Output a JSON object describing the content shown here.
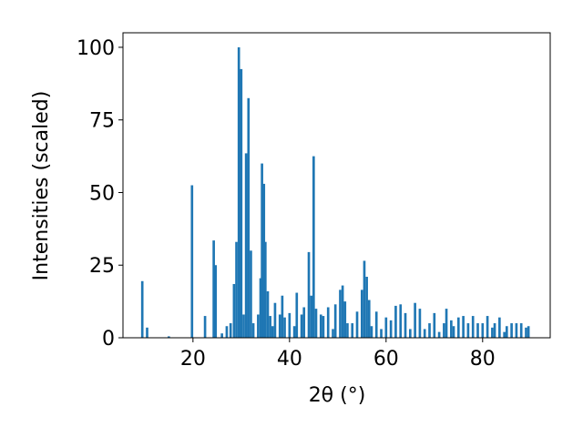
{
  "chart_data": {
    "type": "bar",
    "xlabel": "2θ (°)",
    "ylabel": "Intensities (scaled)",
    "color": "#1f77b4",
    "x": [
      9.5,
      10.5,
      15,
      19.8,
      22.5,
      24.3,
      24.7,
      26,
      27,
      27.8,
      28.5,
      29,
      29.5,
      30,
      30.5,
      31,
      31.5,
      32,
      32.5,
      33.5,
      34,
      34.3,
      34.7,
      35,
      35.5,
      36,
      36.5,
      37,
      38,
      38.5,
      39,
      40,
      41,
      41.5,
      42.5,
      43,
      44,
      44.5,
      45,
      45.5,
      46.5,
      47,
      48,
      49,
      49.5,
      50.5,
      51,
      51.5,
      52,
      53,
      54,
      55,
      55.5,
      56,
      56.5,
      57,
      58,
      59,
      60,
      61,
      62,
      63,
      64,
      65,
      66,
      67,
      68,
      69,
      70,
      71,
      72,
      72.5,
      73.5,
      74,
      75,
      76,
      77,
      78,
      79,
      80,
      81,
      82,
      82.5,
      83.5,
      84.5,
      85,
      86,
      87,
      88,
      89,
      89.5
    ],
    "values": [
      19.5,
      3.5,
      0.5,
      52.5,
      7.5,
      33.5,
      25,
      1.5,
      4,
      5,
      18.5,
      33,
      100,
      92.5,
      8,
      63.5,
      82.5,
      30,
      5,
      8,
      20.5,
      60,
      53,
      33,
      16,
      7.5,
      4,
      12,
      8,
      14.5,
      7,
      8.5,
      4,
      15.5,
      8,
      10.5,
      29.5,
      14.5,
      62.5,
      10,
      8,
      7.5,
      10.5,
      3,
      11.5,
      16.5,
      18,
      12.5,
      5,
      5,
      9,
      16.5,
      26.5,
      21,
      13,
      4,
      9,
      3,
      7,
      6,
      11,
      11.5,
      8.5,
      3,
      12,
      10,
      3,
      5,
      8.5,
      2,
      5,
      10,
      6,
      4,
      7,
      7.5,
      5,
      7.5,
      5,
      5,
      7.5,
      3.5,
      5,
      7,
      2,
      4,
      5,
      5,
      5,
      3.5,
      4
    ],
    "xlim": [
      5.5,
      94
    ],
    "ylim": [
      0,
      105
    ],
    "xticks": [
      20,
      40,
      60,
      80
    ],
    "yticks": [
      0,
      25,
      50,
      75,
      100
    ]
  }
}
